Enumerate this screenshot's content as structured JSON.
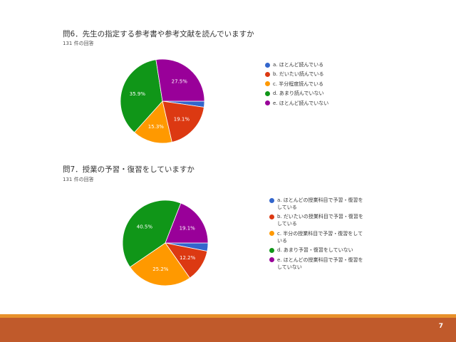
{
  "charts": {
    "q6": {
      "title": "問6．先生の指定する参考書や参考文献を読んでいますか",
      "subtitle": "131 件の回答"
    },
    "q7": {
      "title": "問7．授業の予習・復習をしていますか",
      "subtitle": "131 件の回答"
    }
  },
  "chart_data": [
    {
      "type": "pie",
      "title": "問6．先生の指定する参考書や参考文献を読んでいますか",
      "subtitle": "131 件の回答",
      "legend_position": "right",
      "categories": [
        "a. ほとんど読んでいる",
        "b. だいたい読んでいる",
        "c. 半分程度読んでいる",
        "d. あまり読んでいない",
        "e. ほとんど読んでいない"
      ],
      "values": [
        2.3,
        19.1,
        15.3,
        35.9,
        27.5
      ],
      "data_labels": [
        "",
        "19.1%",
        "15.3%",
        "35.9%",
        "27.5%"
      ],
      "colors": [
        "#3366cc",
        "#dc3912",
        "#ff9900",
        "#109618",
        "#990099"
      ]
    },
    {
      "type": "pie",
      "title": "問7．授業の予習・復習をしていますか",
      "subtitle": "131 件の回答",
      "legend_position": "right",
      "categories": [
        "a. ほとんどの授業科目で予習・復習を\nしている",
        "b. だいたいの授業科目で予習・復習を\nしている",
        "c. 半分の授業科目で予習・復習をして\nいる",
        "d. あまり予習・復習をしていない",
        "e. ほとんどの授業科目で予習・復習を\nしていない"
      ],
      "values": [
        3.1,
        12.2,
        25.2,
        40.5,
        19.1
      ],
      "data_labels": [
        "",
        "12.2%",
        "25.2%",
        "40.5%",
        "19.1%"
      ],
      "colors": [
        "#3366cc",
        "#dc3912",
        "#ff9900",
        "#109618",
        "#990099"
      ]
    }
  ],
  "footer": {
    "page_number": "7",
    "line_color": "#e8912b",
    "band_color": "#c05a2b"
  }
}
